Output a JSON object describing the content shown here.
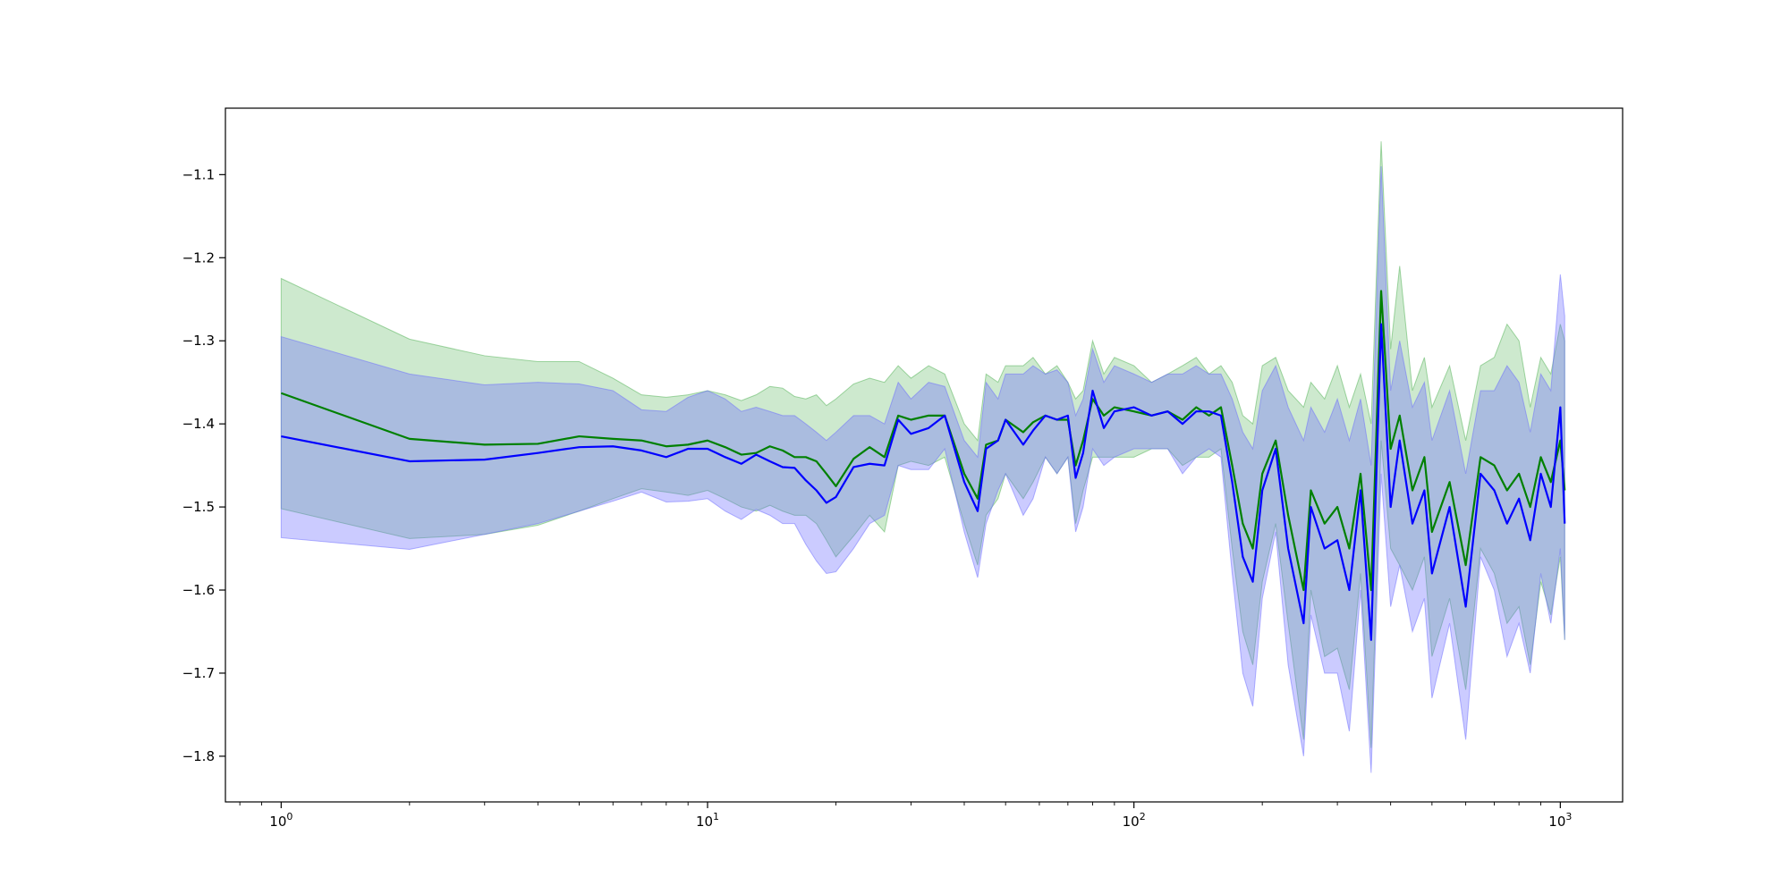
{
  "chart_data": {
    "type": "line",
    "title": "",
    "xlabel": "",
    "ylabel": "",
    "x_scale": "log",
    "xlim": [
      0.74,
      1400
    ],
    "ylim": [
      -1.855,
      -1.02
    ],
    "grid": false,
    "legend": "none",
    "x_ticks": [
      {
        "value": 1,
        "base": "10",
        "exp": "0"
      },
      {
        "value": 10,
        "base": "10",
        "exp": "1"
      },
      {
        "value": 100,
        "base": "10",
        "exp": "2"
      },
      {
        "value": 1000,
        "base": "10",
        "exp": "3"
      }
    ],
    "y_ticks": [
      {
        "value": -1.1,
        "label": "−1.1"
      },
      {
        "value": -1.2,
        "label": "−1.2"
      },
      {
        "value": -1.3,
        "label": "−1.3"
      },
      {
        "value": -1.4,
        "label": "−1.4"
      },
      {
        "value": -1.5,
        "label": "−1.5"
      },
      {
        "value": -1.6,
        "label": "−1.6"
      },
      {
        "value": -1.7,
        "label": "−1.7"
      },
      {
        "value": -1.8,
        "label": "−1.8"
      }
    ],
    "series": [
      {
        "color": "#008000",
        "band_color": "#4caf50",
        "band_opacity": 0.28,
        "x": [
          1,
          2,
          3,
          4,
          5,
          6,
          7,
          8,
          9,
          10,
          11,
          12,
          13,
          14,
          15,
          16,
          17,
          18,
          19,
          20,
          22,
          24,
          26,
          28,
          30,
          33,
          36,
          40,
          43,
          45,
          48,
          50,
          55,
          58,
          62,
          66,
          70,
          73,
          76,
          80,
          85,
          90,
          100,
          110,
          120,
          130,
          140,
          150,
          160,
          170,
          180,
          190,
          200,
          215,
          230,
          250,
          260,
          280,
          300,
          320,
          340,
          360,
          380,
          400,
          420,
          450,
          480,
          500,
          550,
          600,
          650,
          700,
          750,
          800,
          850,
          900,
          950,
          1000,
          1024
        ],
        "y": [
          -1.363,
          -1.418,
          -1.425,
          -1.424,
          -1.415,
          -1.418,
          -1.42,
          -1.427,
          -1.425,
          -1.42,
          -1.428,
          -1.437,
          -1.435,
          -1.427,
          -1.432,
          -1.44,
          -1.44,
          -1.445,
          -1.46,
          -1.475,
          -1.442,
          -1.428,
          -1.44,
          -1.39,
          -1.395,
          -1.39,
          -1.39,
          -1.46,
          -1.49,
          -1.425,
          -1.42,
          -1.395,
          -1.41,
          -1.398,
          -1.39,
          -1.395,
          -1.395,
          -1.45,
          -1.42,
          -1.37,
          -1.39,
          -1.38,
          -1.385,
          -1.39,
          -1.385,
          -1.395,
          -1.38,
          -1.39,
          -1.38,
          -1.45,
          -1.52,
          -1.55,
          -1.46,
          -1.42,
          -1.51,
          -1.6,
          -1.48,
          -1.52,
          -1.5,
          -1.55,
          -1.46,
          -1.6,
          -1.24,
          -1.43,
          -1.39,
          -1.48,
          -1.44,
          -1.53,
          -1.47,
          -1.57,
          -1.44,
          -1.45,
          -1.48,
          -1.46,
          -1.5,
          -1.44,
          -1.47,
          -1.42,
          -1.48
        ],
        "upper": [
          -1.225,
          -1.298,
          -1.318,
          -1.325,
          -1.325,
          -1.345,
          -1.365,
          -1.368,
          -1.365,
          -1.36,
          -1.365,
          -1.372,
          -1.365,
          -1.355,
          -1.357,
          -1.367,
          -1.37,
          -1.365,
          -1.378,
          -1.37,
          -1.352,
          -1.345,
          -1.35,
          -1.33,
          -1.345,
          -1.33,
          -1.34,
          -1.4,
          -1.42,
          -1.34,
          -1.35,
          -1.33,
          -1.33,
          -1.32,
          -1.34,
          -1.33,
          -1.35,
          -1.37,
          -1.36,
          -1.3,
          -1.34,
          -1.32,
          -1.33,
          -1.35,
          -1.34,
          -1.33,
          -1.32,
          -1.34,
          -1.33,
          -1.35,
          -1.39,
          -1.4,
          -1.33,
          -1.32,
          -1.36,
          -1.38,
          -1.35,
          -1.37,
          -1.33,
          -1.38,
          -1.34,
          -1.4,
          -1.06,
          -1.31,
          -1.21,
          -1.36,
          -1.32,
          -1.38,
          -1.33,
          -1.42,
          -1.33,
          -1.32,
          -1.28,
          -1.3,
          -1.38,
          -1.32,
          -1.34,
          -1.28,
          -1.3
        ],
        "lower": [
          -1.502,
          -1.538,
          -1.533,
          -1.522,
          -1.505,
          -1.49,
          -1.478,
          -1.482,
          -1.486,
          -1.48,
          -1.49,
          -1.5,
          -1.505,
          -1.498,
          -1.505,
          -1.51,
          -1.51,
          -1.52,
          -1.54,
          -1.56,
          -1.535,
          -1.51,
          -1.53,
          -1.45,
          -1.445,
          -1.45,
          -1.44,
          -1.52,
          -1.57,
          -1.51,
          -1.49,
          -1.46,
          -1.49,
          -1.47,
          -1.44,
          -1.46,
          -1.44,
          -1.52,
          -1.48,
          -1.44,
          -1.44,
          -1.44,
          -1.44,
          -1.43,
          -1.43,
          -1.45,
          -1.44,
          -1.44,
          -1.43,
          -1.55,
          -1.65,
          -1.69,
          -1.59,
          -1.52,
          -1.64,
          -1.78,
          -1.6,
          -1.68,
          -1.67,
          -1.72,
          -1.58,
          -1.79,
          -1.42,
          -1.55,
          -1.57,
          -1.6,
          -1.56,
          -1.68,
          -1.61,
          -1.72,
          -1.55,
          -1.58,
          -1.64,
          -1.62,
          -1.69,
          -1.59,
          -1.63,
          -1.56,
          -1.66
        ]
      },
      {
        "color": "#0000ff",
        "band_color": "#6a6aff",
        "band_opacity": 0.35,
        "x": [
          1,
          2,
          3,
          4,
          5,
          6,
          7,
          8,
          9,
          10,
          11,
          12,
          13,
          14,
          15,
          16,
          17,
          18,
          19,
          20,
          22,
          24,
          26,
          28,
          30,
          33,
          36,
          40,
          43,
          45,
          48,
          50,
          55,
          58,
          62,
          66,
          70,
          73,
          76,
          80,
          85,
          90,
          100,
          110,
          120,
          130,
          140,
          150,
          160,
          170,
          180,
          190,
          200,
          215,
          230,
          250,
          260,
          280,
          300,
          320,
          340,
          360,
          380,
          400,
          420,
          450,
          480,
          500,
          550,
          600,
          650,
          700,
          750,
          800,
          850,
          900,
          950,
          1000,
          1024
        ],
        "y": [
          -1.415,
          -1.445,
          -1.443,
          -1.435,
          -1.428,
          -1.427,
          -1.432,
          -1.44,
          -1.43,
          -1.43,
          -1.44,
          -1.448,
          -1.437,
          -1.445,
          -1.452,
          -1.453,
          -1.468,
          -1.48,
          -1.495,
          -1.488,
          -1.452,
          -1.448,
          -1.45,
          -1.395,
          -1.412,
          -1.405,
          -1.39,
          -1.47,
          -1.505,
          -1.43,
          -1.42,
          -1.395,
          -1.425,
          -1.408,
          -1.39,
          -1.395,
          -1.39,
          -1.465,
          -1.435,
          -1.36,
          -1.405,
          -1.385,
          -1.38,
          -1.39,
          -1.385,
          -1.4,
          -1.385,
          -1.385,
          -1.39,
          -1.47,
          -1.56,
          -1.59,
          -1.48,
          -1.43,
          -1.55,
          -1.64,
          -1.5,
          -1.55,
          -1.54,
          -1.6,
          -1.48,
          -1.66,
          -1.28,
          -1.5,
          -1.42,
          -1.52,
          -1.48,
          -1.58,
          -1.5,
          -1.62,
          -1.46,
          -1.48,
          -1.52,
          -1.49,
          -1.54,
          -1.46,
          -1.5,
          -1.38,
          -1.52
        ],
        "upper": [
          -1.295,
          -1.34,
          -1.353,
          -1.35,
          -1.352,
          -1.36,
          -1.383,
          -1.385,
          -1.368,
          -1.36,
          -1.37,
          -1.385,
          -1.38,
          -1.385,
          -1.39,
          -1.39,
          -1.4,
          -1.41,
          -1.42,
          -1.41,
          -1.39,
          -1.39,
          -1.4,
          -1.35,
          -1.37,
          -1.35,
          -1.355,
          -1.42,
          -1.44,
          -1.35,
          -1.37,
          -1.34,
          -1.34,
          -1.33,
          -1.34,
          -1.335,
          -1.35,
          -1.39,
          -1.37,
          -1.31,
          -1.35,
          -1.33,
          -1.34,
          -1.35,
          -1.34,
          -1.34,
          -1.33,
          -1.34,
          -1.34,
          -1.37,
          -1.41,
          -1.43,
          -1.36,
          -1.33,
          -1.38,
          -1.42,
          -1.38,
          -1.41,
          -1.37,
          -1.42,
          -1.37,
          -1.45,
          -1.09,
          -1.36,
          -1.3,
          -1.38,
          -1.35,
          -1.42,
          -1.36,
          -1.46,
          -1.36,
          -1.36,
          -1.33,
          -1.35,
          -1.41,
          -1.34,
          -1.36,
          -1.22,
          -1.27
        ],
        "lower": [
          -1.537,
          -1.551,
          -1.533,
          -1.52,
          -1.505,
          -1.493,
          -1.482,
          -1.494,
          -1.493,
          -1.49,
          -1.505,
          -1.515,
          -1.503,
          -1.51,
          -1.52,
          -1.52,
          -1.545,
          -1.565,
          -1.58,
          -1.578,
          -1.55,
          -1.52,
          -1.51,
          -1.45,
          -1.455,
          -1.455,
          -1.43,
          -1.53,
          -1.585,
          -1.52,
          -1.48,
          -1.46,
          -1.51,
          -1.49,
          -1.44,
          -1.46,
          -1.44,
          -1.53,
          -1.5,
          -1.43,
          -1.45,
          -1.44,
          -1.43,
          -1.43,
          -1.43,
          -1.46,
          -1.44,
          -1.43,
          -1.44,
          -1.58,
          -1.7,
          -1.74,
          -1.61,
          -1.53,
          -1.69,
          -1.8,
          -1.63,
          -1.7,
          -1.7,
          -1.77,
          -1.6,
          -1.82,
          -1.46,
          -1.62,
          -1.57,
          -1.65,
          -1.61,
          -1.73,
          -1.64,
          -1.78,
          -1.56,
          -1.6,
          -1.68,
          -1.64,
          -1.7,
          -1.58,
          -1.64,
          -1.55,
          -1.66
        ]
      }
    ]
  }
}
